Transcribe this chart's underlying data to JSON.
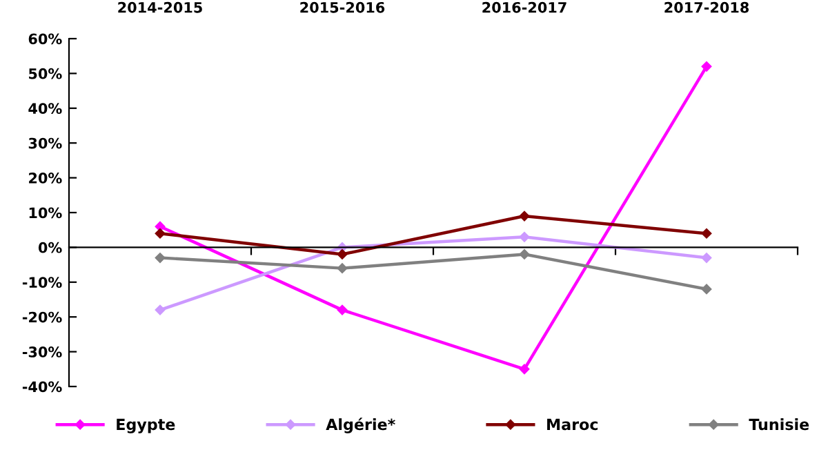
{
  "chart_data": {
    "type": "line",
    "categories": [
      "2014-2015",
      "2015-2016",
      "2016-2017",
      "2017-2018"
    ],
    "series": [
      {
        "name": "Egypte",
        "color": "#ff00ff",
        "values": [
          6,
          -18,
          -35,
          52
        ]
      },
      {
        "name": "Algérie*",
        "color": "#cc99ff",
        "values": [
          -18,
          0,
          3,
          -3
        ]
      },
      {
        "name": "Maroc",
        "color": "#800000",
        "values": [
          4,
          -2,
          9,
          4
        ]
      },
      {
        "name": "Tunisie",
        "color": "#808080",
        "values": [
          -3,
          -6,
          -2,
          -12
        ]
      }
    ],
    "ylim": [
      -40,
      60
    ],
    "yticks": [
      {
        "value": -40,
        "label": "-40%"
      },
      {
        "value": -30,
        "label": "-30%"
      },
      {
        "value": -20,
        "label": "-20%"
      },
      {
        "value": -10,
        "label": "-10%"
      },
      {
        "value": 0,
        "label": "0%"
      },
      {
        "value": 10,
        "label": "10%"
      },
      {
        "value": 20,
        "label": "20%"
      },
      {
        "value": 30,
        "label": "30%"
      },
      {
        "value": 40,
        "label": "40%"
      },
      {
        "value": 50,
        "label": "50%"
      },
      {
        "value": 60,
        "label": "60%"
      }
    ],
    "legend": "bottom",
    "marker": "diamond",
    "line_style": "solid"
  }
}
